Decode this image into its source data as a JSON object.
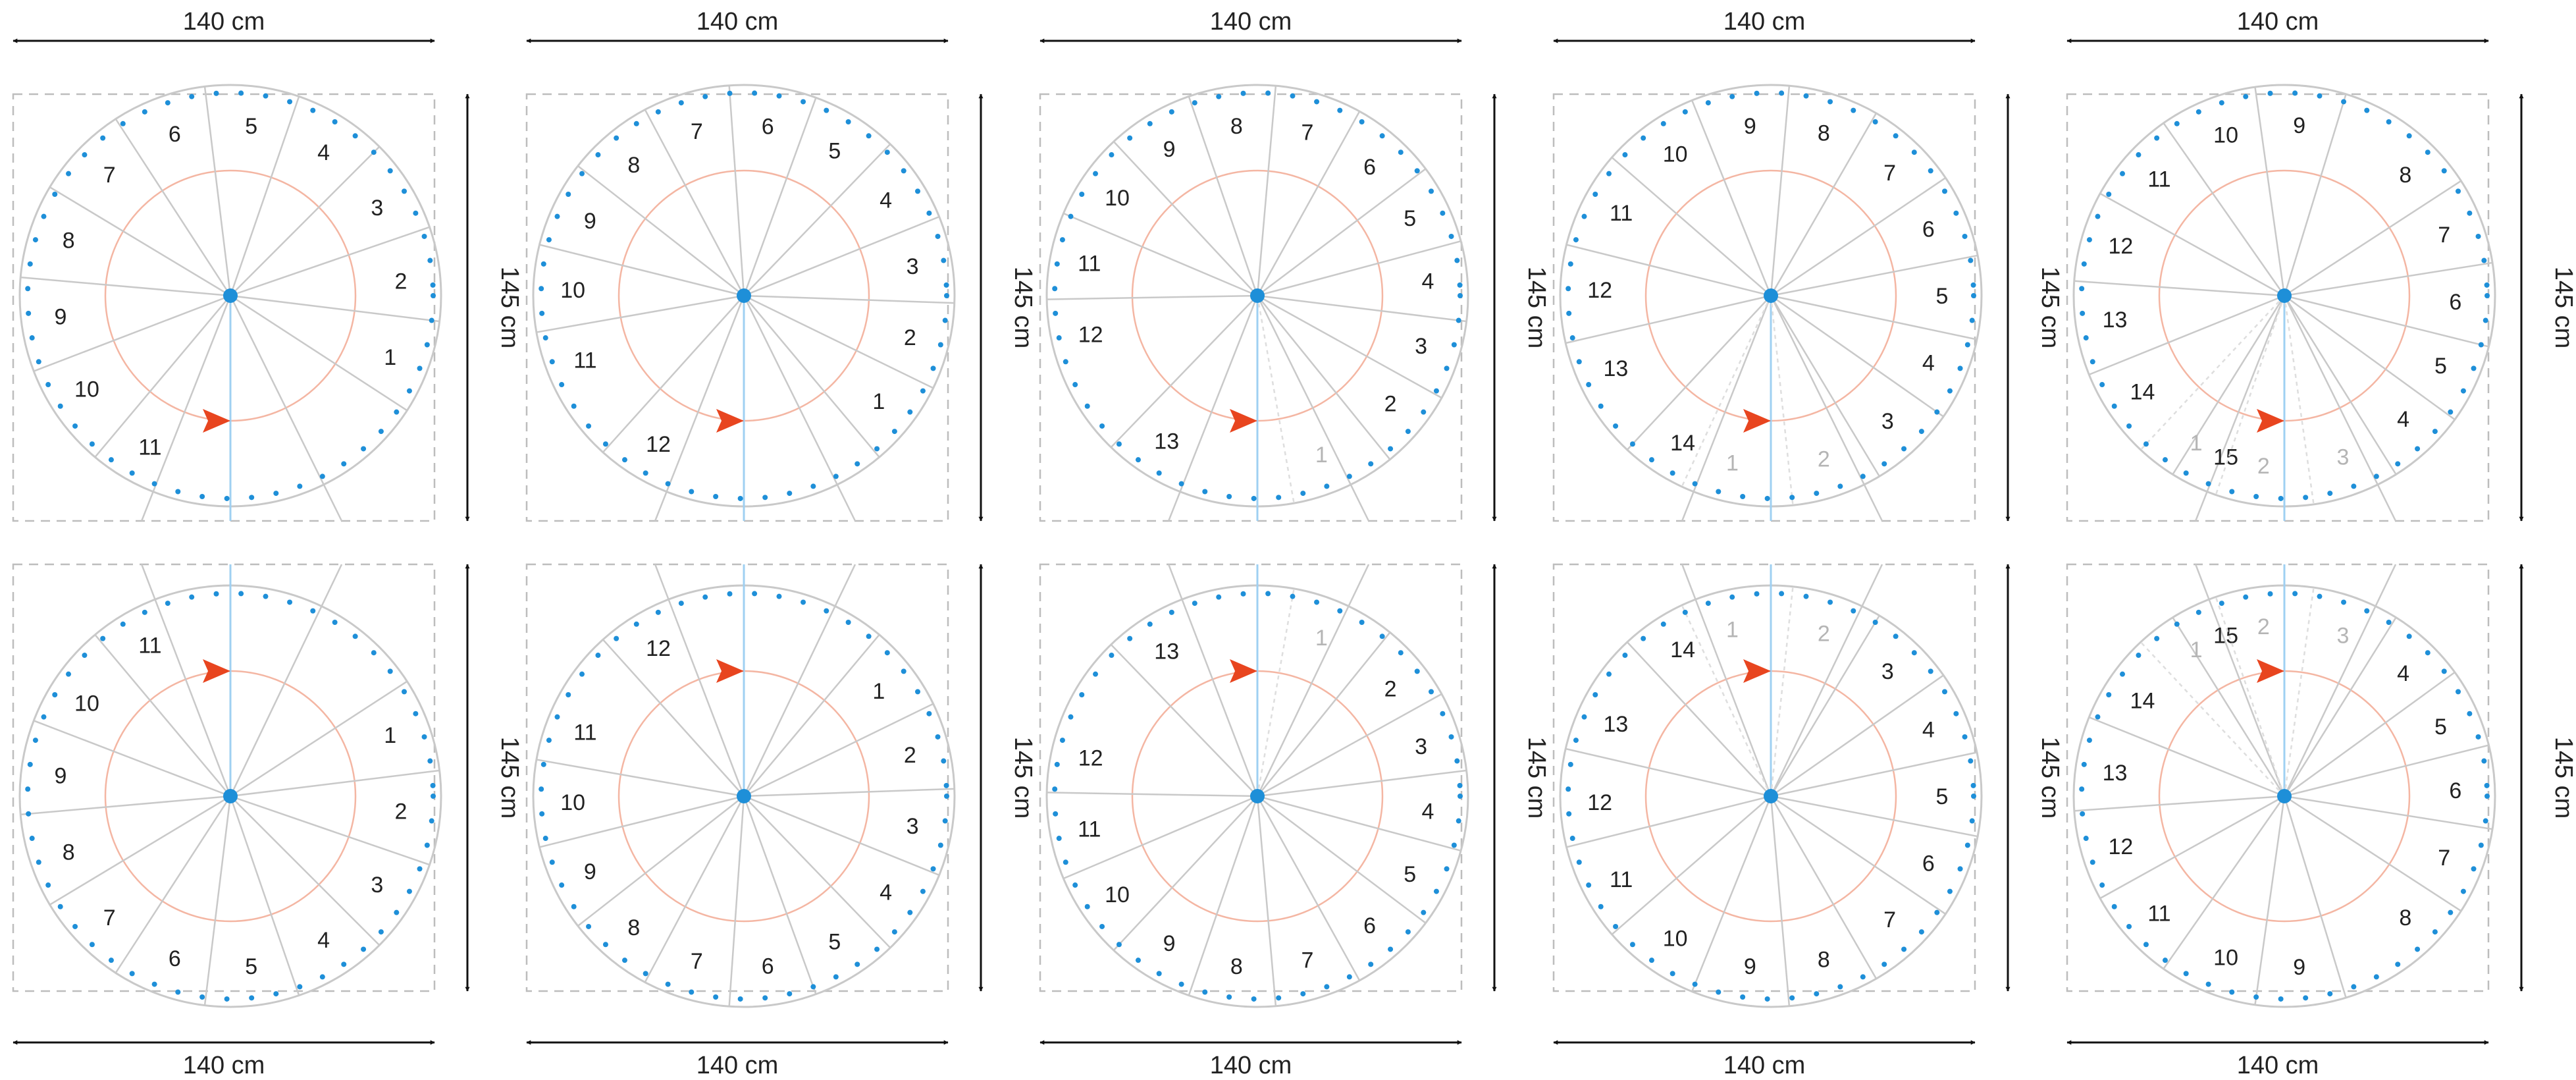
{
  "colors": {
    "stair_line": "#c9c9c9",
    "frame_dash": "#bdbdbd",
    "baluster_dot": "#1e8fd8",
    "center_post": "#1e8fd8",
    "axis_line": "#9fd0f2",
    "walk_line": "#f4b6a3",
    "arrow": "#e8451f",
    "dimension": "#111111",
    "text": "#222222",
    "ghost_text": "#b5b5b5"
  },
  "dimensions": {
    "width_label": "140 cm",
    "height_label": "145 cm"
  },
  "rows": [
    {
      "arrow_position": "below",
      "width_label_position": "top"
    },
    {
      "arrow_position": "above",
      "width_label_position": "bottom"
    }
  ],
  "stairs": [
    {
      "steps": [
        {
          "label": "1",
          "angle": 21
        },
        {
          "label": "2",
          "angle": -5
        },
        {
          "label": "3",
          "angle": -31
        },
        {
          "label": "4",
          "angle": -57
        },
        {
          "label": "5",
          "angle": -83
        },
        {
          "label": "6",
          "angle": -109
        },
        {
          "label": "7",
          "angle": -135
        },
        {
          "label": "8",
          "angle": -161
        },
        {
          "label": "9",
          "angle": -187
        },
        {
          "label": "10",
          "angle": -213
        },
        {
          "label": "11",
          "angle": -242
        }
      ],
      "ghost_steps": []
    },
    {
      "steps": [
        {
          "label": "1",
          "angle": 38
        },
        {
          "label": "2",
          "angle": 14
        },
        {
          "label": "3",
          "angle": -10
        },
        {
          "label": "4",
          "angle": -34
        },
        {
          "label": "5",
          "angle": -58
        },
        {
          "label": "6",
          "angle": -82
        },
        {
          "label": "7",
          "angle": -106
        },
        {
          "label": "8",
          "angle": -130
        },
        {
          "label": "9",
          "angle": -154
        },
        {
          "label": "10",
          "angle": -178
        },
        {
          "label": "11",
          "angle": -202
        },
        {
          "label": "12",
          "angle": -240
        }
      ],
      "ghost_steps": []
    },
    {
      "steps": [
        {
          "label": "2",
          "angle": 39
        },
        {
          "label": "3",
          "angle": 17
        },
        {
          "label": "4",
          "angle": -5
        },
        {
          "label": "5",
          "angle": -27
        },
        {
          "label": "6",
          "angle": -49
        },
        {
          "label": "7",
          "angle": -73
        },
        {
          "label": "8",
          "angle": -97
        },
        {
          "label": "9",
          "angle": -121
        },
        {
          "label": "10",
          "angle": -145
        },
        {
          "label": "11",
          "angle": -169
        },
        {
          "label": "12",
          "angle": -193
        },
        {
          "label": "13",
          "angle": -238
        }
      ],
      "ghost_steps": [
        {
          "label": "1",
          "angle": 68
        }
      ]
    },
    {
      "steps": [
        {
          "label": "3",
          "angle": 47
        },
        {
          "label": "4",
          "angle": 23
        },
        {
          "label": "5",
          "angle": 0
        },
        {
          "label": "6",
          "angle": -23
        },
        {
          "label": "7",
          "angle": -46
        },
        {
          "label": "8",
          "angle": -72
        },
        {
          "label": "9",
          "angle": -97
        },
        {
          "label": "10",
          "angle": -124
        },
        {
          "label": "11",
          "angle": -151
        },
        {
          "label": "12",
          "angle": -178
        },
        {
          "label": "13",
          "angle": -205
        },
        {
          "label": "14",
          "angle": -239
        }
      ],
      "ghost_steps": [
        {
          "label": "1",
          "angle": 103
        },
        {
          "label": "2",
          "angle": 72
        }
      ]
    },
    {
      "steps": [
        {
          "label": "4",
          "angle": 46
        },
        {
          "label": "5",
          "angle": 24
        },
        {
          "label": "6",
          "angle": 2
        },
        {
          "label": "7",
          "angle": -21
        },
        {
          "label": "8",
          "angle": -45
        },
        {
          "label": "9",
          "angle": -85
        },
        {
          "label": "10",
          "angle": -110
        },
        {
          "label": "11",
          "angle": -137
        },
        {
          "label": "12",
          "angle": -163
        },
        {
          "label": "13",
          "angle": -188
        },
        {
          "label": "14",
          "angle": -214
        },
        {
          "label": "15",
          "angle": -250
        }
      ],
      "ghost_steps": [
        {
          "label": "1",
          "angle": 121
        },
        {
          "label": "2",
          "angle": 97
        },
        {
          "label": "3",
          "angle": 70
        }
      ]
    }
  ]
}
